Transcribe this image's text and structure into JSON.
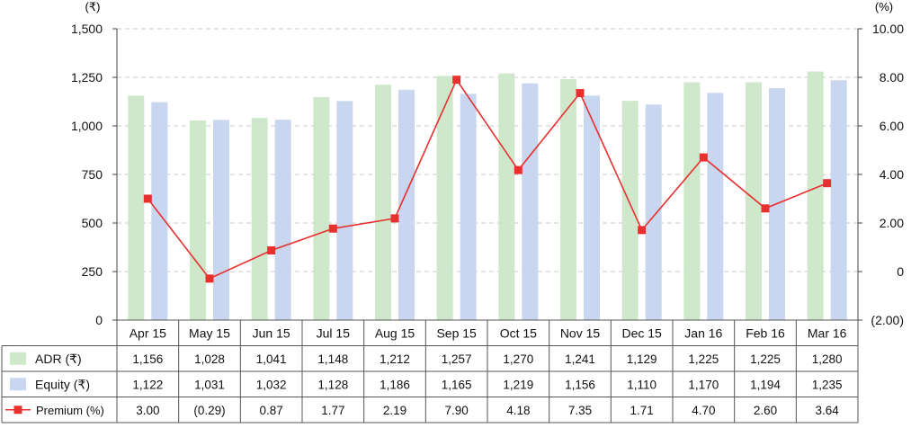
{
  "chart_data": {
    "type": "bar+line",
    "categories": [
      "Apr 15",
      "May 15",
      "Jun 15",
      "Jul 15",
      "Aug 15",
      "Sep 15",
      "Oct 15",
      "Nov 15",
      "Dec 15",
      "Jan 16",
      "Feb 16",
      "Mar 16"
    ],
    "left_axis": {
      "unit_label": "(₹)",
      "ylim": [
        0,
        1500
      ],
      "ticks": [
        "0",
        "250",
        "500",
        "750",
        "1,000",
        "1,250",
        "1,500"
      ]
    },
    "right_axis": {
      "unit_label": "(%)",
      "ylim": [
        -2,
        10
      ],
      "ticks": [
        "(2.00)",
        "0",
        "2.00",
        "4.00",
        "6.00",
        "8.00",
        "10.00"
      ]
    },
    "grid": "horizontal dashed",
    "series": [
      {
        "name": "ADR (₹)",
        "kind": "bar",
        "axis": "left",
        "color": "#cfe8cc",
        "values": [
          1156,
          1028,
          1041,
          1148,
          1212,
          1257,
          1270,
          1241,
          1129,
          1225,
          1225,
          1280
        ],
        "labels": [
          "1,156",
          "1,028",
          "1,041",
          "1,148",
          "1,212",
          "1,257",
          "1,270",
          "1,241",
          "1,129",
          "1,225",
          "1,225",
          "1,280"
        ]
      },
      {
        "name": "Equity (₹)",
        "kind": "bar",
        "axis": "left",
        "color": "#c9d6ef",
        "values": [
          1122,
          1031,
          1032,
          1128,
          1186,
          1165,
          1219,
          1156,
          1110,
          1170,
          1194,
          1235
        ],
        "labels": [
          "1,122",
          "1,031",
          "1,032",
          "1,128",
          "1,186",
          "1,165",
          "1,219",
          "1,156",
          "1,110",
          "1,170",
          "1,194",
          "1,235"
        ]
      },
      {
        "name": "Premium (%)",
        "kind": "line",
        "axis": "right",
        "color": "#e8302f",
        "values": [
          3.0,
          -0.29,
          0.87,
          1.77,
          2.19,
          7.9,
          4.18,
          7.35,
          1.71,
          4.7,
          2.6,
          3.64
        ],
        "labels": [
          "3.00",
          "(0.29)",
          "0.87",
          "1.77",
          "2.19",
          "7.90",
          "4.18",
          "7.35",
          "1.71",
          "4.70",
          "2.60",
          "3.64"
        ]
      }
    ]
  }
}
